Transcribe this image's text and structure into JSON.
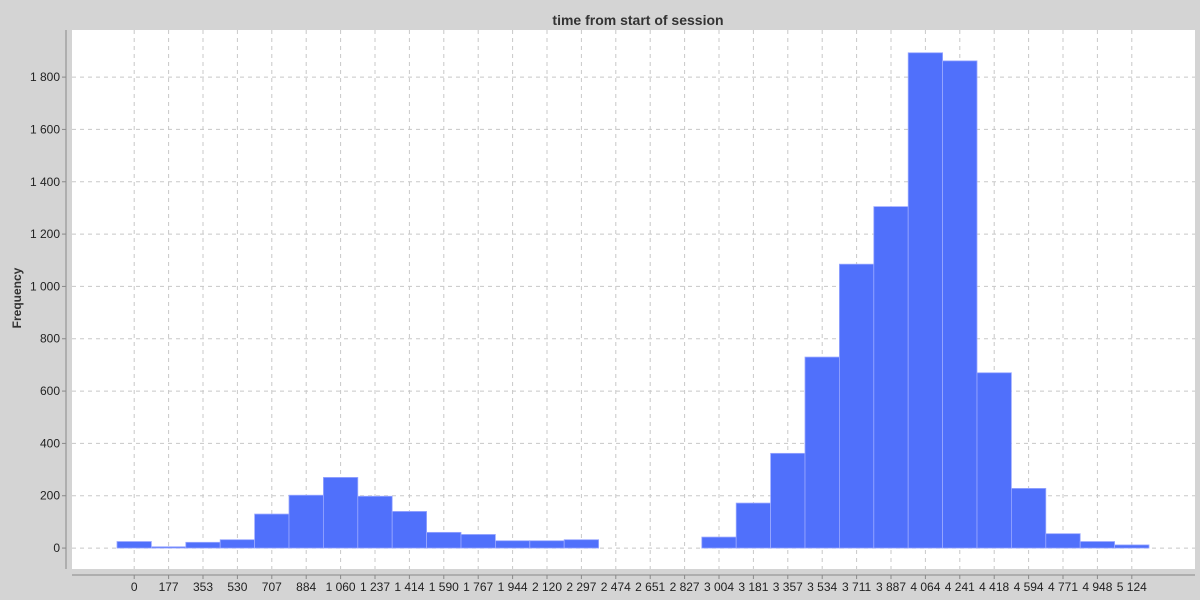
{
  "chart_data": {
    "type": "bar",
    "title": "time from start of session",
    "xlabel": "",
    "ylabel": "Frequency",
    "categories": [
      "0",
      "177",
      "353",
      "530",
      "707",
      "884",
      "1 060",
      "1 237",
      "1 414",
      "1 590",
      "1 767",
      "1 944",
      "2 120",
      "2 297",
      "2 474",
      "2 651",
      "2 827",
      "3 004",
      "3 181",
      "3 357",
      "3 534",
      "3 711",
      "3 887",
      "4 064",
      "4 241",
      "4 418",
      "4 594",
      "4 771",
      "4 948",
      "5 124"
    ],
    "values": [
      25,
      5,
      22,
      32,
      130,
      202,
      270,
      198,
      140,
      60,
      52,
      28,
      28,
      32,
      0,
      0,
      0,
      42,
      172,
      362,
      730,
      1085,
      1305,
      1893,
      1862,
      670,
      228,
      55,
      25,
      12
    ],
    "ylim": [
      -80,
      1980
    ],
    "yticks": [
      0,
      200,
      400,
      600,
      800,
      1000,
      1200,
      1400,
      1600,
      1800
    ],
    "ytick_labels": [
      "0",
      "200",
      "400",
      "600",
      "800",
      "1 000",
      "1 200",
      "1 400",
      "1 600",
      "1 800"
    ],
    "grid": true,
    "colors": {
      "bar": "#5070fb",
      "bar_edge": "#9aa8ff",
      "plot_background": "#ffffff",
      "figure_background": "#d4d4d4",
      "grid": "#c8c8c8"
    }
  }
}
